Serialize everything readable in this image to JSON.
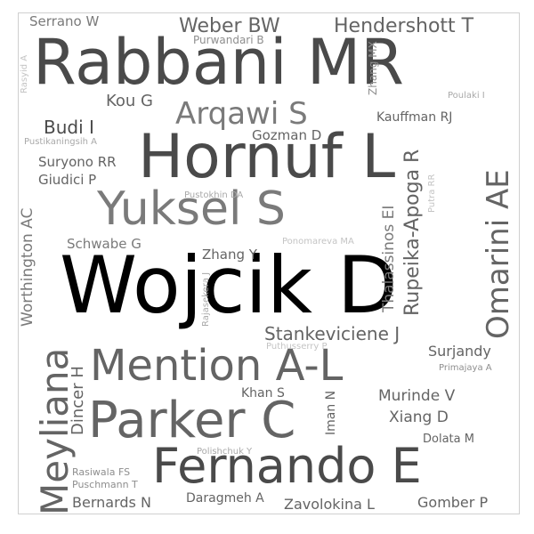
{
  "words": [
    {
      "text": "Wojcik D",
      "weight": 1.0,
      "color": "#000000",
      "orientation": "horizontal"
    },
    {
      "text": "Rabbani MR",
      "weight": 0.72,
      "color": "#4a4a4a",
      "orientation": "horizontal"
    },
    {
      "text": "Hornuf L",
      "weight": 0.7,
      "color": "#4a4a4a",
      "orientation": "horizontal"
    },
    {
      "text": "Fernando E",
      "weight": 0.58,
      "color": "#4a4a4a",
      "orientation": "horizontal"
    },
    {
      "text": "Parker C",
      "weight": 0.58,
      "color": "#646464",
      "orientation": "horizontal"
    },
    {
      "text": "Yuksel S",
      "weight": 0.55,
      "color": "#7a7a7a",
      "orientation": "horizontal"
    },
    {
      "text": "Mention A-L",
      "weight": 0.5,
      "color": "#646464",
      "orientation": "horizontal"
    },
    {
      "text": "Meyliana",
      "weight": 0.44,
      "color": "#646464",
      "orientation": "vertical"
    },
    {
      "text": "Omarini AE",
      "weight": 0.36,
      "color": "#646464",
      "orientation": "vertical"
    },
    {
      "text": "Arqawi S",
      "weight": 0.36,
      "color": "#7a7a7a",
      "orientation": "horizontal"
    },
    {
      "text": "Rupeika-Apoga R",
      "weight": 0.28,
      "color": "#646464",
      "orientation": "vertical"
    },
    {
      "text": "Weber BW",
      "weight": 0.24,
      "color": "#646464",
      "orientation": "horizontal"
    },
    {
      "text": "Hendershott T",
      "weight": 0.24,
      "color": "#646464",
      "orientation": "horizontal"
    },
    {
      "text": "Stankeviciene J",
      "weight": 0.22,
      "color": "#646464",
      "orientation": "horizontal"
    },
    {
      "text": "Budi I",
      "weight": 0.22,
      "color": "#4a4a4a",
      "orientation": "horizontal"
    },
    {
      "text": "Dincer H",
      "weight": 0.2,
      "color": "#646464",
      "orientation": "vertical"
    },
    {
      "text": "Kou G",
      "weight": 0.2,
      "color": "#646464",
      "orientation": "horizontal"
    },
    {
      "text": "Thalassinos EI",
      "weight": 0.18,
      "color": "#7a7a7a",
      "orientation": "vertical"
    },
    {
      "text": "Murinde V",
      "weight": 0.18,
      "color": "#646464",
      "orientation": "horizontal"
    },
    {
      "text": "Xiang D",
      "weight": 0.18,
      "color": "#646464",
      "orientation": "horizontal"
    },
    {
      "text": "Worthington AC",
      "weight": 0.17,
      "color": "#7a7a7a",
      "orientation": "vertical"
    },
    {
      "text": "Zavolokina L",
      "weight": 0.17,
      "color": "#646464",
      "orientation": "horizontal"
    },
    {
      "text": "Gomber P",
      "weight": 0.17,
      "color": "#646464",
      "orientation": "horizontal"
    },
    {
      "text": "Bernards N",
      "weight": 0.17,
      "color": "#646464",
      "orientation": "horizontal"
    },
    {
      "text": "Surjandy",
      "weight": 0.16,
      "color": "#646464",
      "orientation": "horizontal"
    },
    {
      "text": "Serrano W",
      "weight": 0.15,
      "color": "#7a7a7a",
      "orientation": "horizontal"
    },
    {
      "text": "Suryono RR",
      "weight": 0.15,
      "color": "#646464",
      "orientation": "horizontal"
    },
    {
      "text": "Giudici P",
      "weight": 0.15,
      "color": "#646464",
      "orientation": "horizontal"
    },
    {
      "text": "Schwabe G",
      "weight": 0.15,
      "color": "#7a7a7a",
      "orientation": "horizontal"
    },
    {
      "text": "Zhang Y",
      "weight": 0.15,
      "color": "#646464",
      "orientation": "horizontal"
    },
    {
      "text": "Gozman D",
      "weight": 0.15,
      "color": "#646464",
      "orientation": "horizontal"
    },
    {
      "text": "Kauffman RJ",
      "weight": 0.14,
      "color": "#646464",
      "orientation": "horizontal"
    },
    {
      "text": "Khan S",
      "weight": 0.14,
      "color": "#646464",
      "orientation": "horizontal"
    },
    {
      "text": "Iman N",
      "weight": 0.14,
      "color": "#646464",
      "orientation": "vertical"
    },
    {
      "text": "Daragmeh A",
      "weight": 0.14,
      "color": "#646464",
      "orientation": "horizontal"
    },
    {
      "text": "Dolata M",
      "weight": 0.13,
      "color": "#646464",
      "orientation": "horizontal"
    },
    {
      "text": "Zhang MX",
      "weight": 0.12,
      "color": "#8e8e8e",
      "orientation": "vertical"
    },
    {
      "text": "Purwandari B",
      "weight": 0.12,
      "color": "#8e8e8e",
      "orientation": "horizontal"
    },
    {
      "text": "Puschmann T",
      "weight": 0.11,
      "color": "#8e8e8e",
      "orientation": "horizontal"
    },
    {
      "text": "Rasiwala FS",
      "weight": 0.11,
      "color": "#8e8e8e",
      "orientation": "horizontal"
    },
    {
      "text": "Primajaya A",
      "weight": 0.1,
      "color": "#8e8e8e",
      "orientation": "horizontal"
    },
    {
      "text": "Polishchuk Y",
      "weight": 0.1,
      "color": "#a9a9a9",
      "orientation": "horizontal"
    },
    {
      "text": "Poulaki I",
      "weight": 0.1,
      "color": "#a9a9a9",
      "orientation": "horizontal"
    },
    {
      "text": "Pustikaningsih A",
      "weight": 0.1,
      "color": "#a9a9a9",
      "orientation": "horizontal"
    },
    {
      "text": "Pustokhin DA",
      "weight": 0.1,
      "color": "#a9a9a9",
      "orientation": "horizontal"
    },
    {
      "text": "Ponomareva MA",
      "weight": 0.1,
      "color": "#c4c4c4",
      "orientation": "horizontal"
    },
    {
      "text": "Puthusserry P",
      "weight": 0.1,
      "color": "#c4c4c4",
      "orientation": "horizontal"
    },
    {
      "text": "Rajasekera J",
      "weight": 0.1,
      "color": "#a9a9a9",
      "orientation": "vertical"
    },
    {
      "text": "Putra RR",
      "weight": 0.1,
      "color": "#c4c4c4",
      "orientation": "vertical"
    },
    {
      "text": "Rasyid A",
      "weight": 0.1,
      "color": "#c4c4c4",
      "orientation": "vertical"
    }
  ]
}
